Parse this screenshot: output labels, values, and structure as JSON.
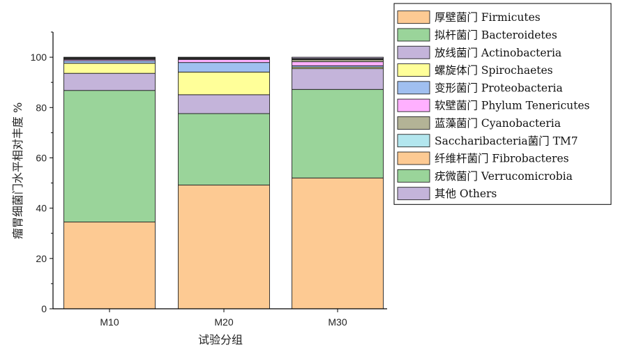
{
  "chart_data": {
    "type": "bar",
    "stacked": true,
    "categories": [
      "M10",
      "M20",
      "M30"
    ],
    "xlabel": "试验分组",
    "ylabel": "瘤胃细菌门水平相对丰度 %",
    "ylim": [
      0,
      110
    ],
    "yticks": [
      0,
      20,
      40,
      60,
      80,
      100
    ],
    "grid": false,
    "legend_position": "top-right",
    "series": [
      {
        "name": "厚壁菌门  Firmicutes",
        "color": "#fdca93",
        "values": [
          34.5,
          49.2,
          52.0
        ]
      },
      {
        "name": "拟杆菌门 Bacteroidetes",
        "color": "#9ad49a",
        "values": [
          52.3,
          28.4,
          35.2
        ]
      },
      {
        "name": "放线菌门 Actinobacteria",
        "color": "#c4b4da",
        "values": [
          6.8,
          7.5,
          8.3
        ]
      },
      {
        "name": "螺旋体门  Spirochaetes",
        "color": "#ffff99",
        "values": [
          4.0,
          9.0,
          0.5
        ]
      },
      {
        "name": "变形菌门 Proteobacteria",
        "color": "#a0bff0",
        "values": [
          1.0,
          3.8,
          0.6
        ]
      },
      {
        "name": "软壁菌门 Phylum Tenericutes",
        "color": "#ffb0ff",
        "values": [
          0.5,
          1.2,
          1.6
        ]
      },
      {
        "name": "蓝藻菌门 Cyanobacteria",
        "color": "#b3b396",
        "values": [
          0.3,
          0.3,
          0.8
        ]
      },
      {
        "name": "Saccharibacteria菌门 TM7",
        "color": "#b3e6ee",
        "values": [
          0.2,
          0.2,
          0.2
        ]
      },
      {
        "name": "纤维杆菌门 Fibrobacteres",
        "color": "#fdca93",
        "values": [
          0.1,
          0.1,
          0.2
        ]
      },
      {
        "name": "疣微菌门 Verrucomicrobia",
        "color": "#9ad49a",
        "values": [
          0.1,
          0.1,
          0.1
        ]
      },
      {
        "name": "其他 Others",
        "color": "#c4b4da",
        "values": [
          0.2,
          0.2,
          0.5
        ]
      }
    ]
  }
}
